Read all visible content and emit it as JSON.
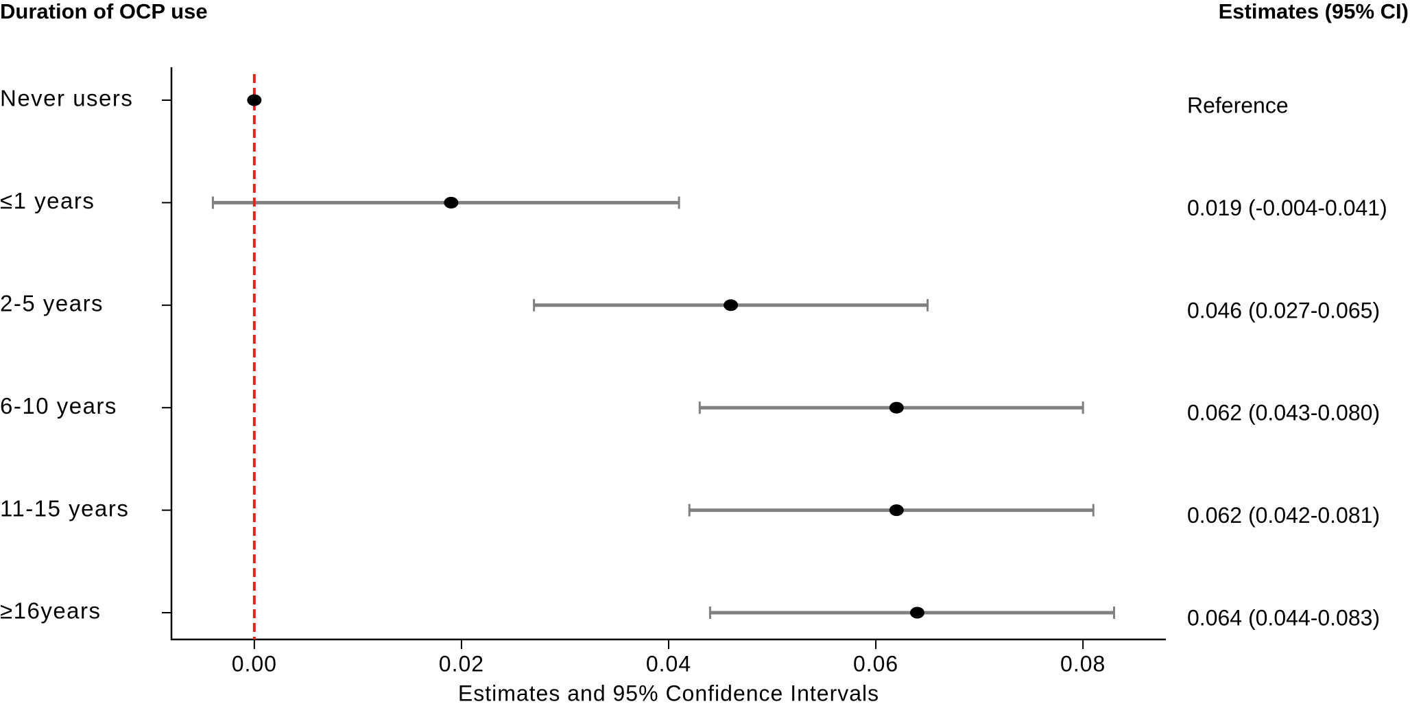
{
  "chart_data": {
    "type": "forest",
    "left_header": "Duration of OCP use",
    "right_header": "Estimates (95% CI)",
    "xlabel": "Estimates and 95% Confidence Intervals",
    "categories": [
      "Never users",
      "≤1 years",
      "2-5 years",
      "6-10 years",
      "11-15 years",
      "≥16years"
    ],
    "values": [
      0,
      0.019,
      0.046,
      0.062,
      0.062,
      0.064
    ],
    "lower": [
      null,
      -0.004,
      0.027,
      0.043,
      0.042,
      0.044
    ],
    "upper": [
      null,
      0.041,
      0.065,
      0.08,
      0.081,
      0.083
    ],
    "value_labels": [
      "Reference",
      "0.019 (-0.004-0.041)",
      "0.046 (0.027-0.065)",
      "0.062 (0.043-0.080)",
      "0.062 (0.042-0.081)",
      "0.064 (0.044-0.083)"
    ],
    "point_color": "#000000",
    "ci_color": "#808080",
    "reference_line": {
      "value": 0,
      "color": "#e8201f"
    },
    "xlim": [
      -0.008,
      0.088
    ],
    "xticks": [
      {
        "value": 0,
        "label": "0.00"
      },
      {
        "value": 0.02,
        "label": "0.02"
      },
      {
        "value": 0.04,
        "label": "0.04"
      },
      {
        "value": 0.06,
        "label": "0.06"
      },
      {
        "value": 0.08,
        "label": "0.08"
      }
    ]
  }
}
